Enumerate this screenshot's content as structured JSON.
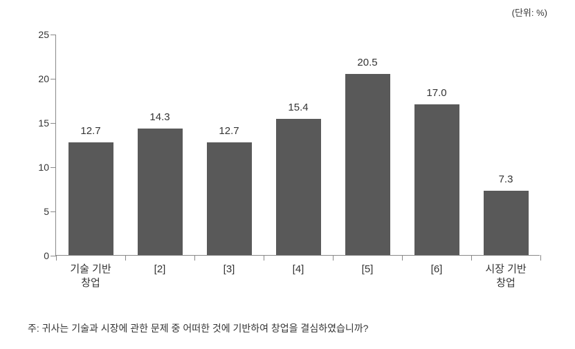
{
  "unit_label": "(단위: %)",
  "chart": {
    "type": "bar",
    "ylim": [
      0,
      25
    ],
    "ytick_step": 5,
    "yticks": [
      0,
      5,
      10,
      15,
      20,
      25
    ],
    "categories": [
      "기술 기반\n창업",
      "[2]",
      "[3]",
      "[4]",
      "[5]",
      "[6]",
      "시장 기반\n창업"
    ],
    "values": [
      12.7,
      14.3,
      12.7,
      15.4,
      20.5,
      17.0,
      7.3
    ],
    "value_labels": [
      "12.7",
      "14.3",
      "12.7",
      "15.4",
      "20.5",
      "17.0",
      "7.3"
    ],
    "bar_color": "#595959",
    "axis_color": "#888888",
    "background_color": "#ffffff",
    "bar_width_ratio": 0.65,
    "label_fontsize": 15,
    "tick_fontsize": 14
  },
  "footnote": "주: 귀사는 기술과 시장에 관한 문제 중 어떠한 것에 기반하여 창업을 결심하였습니까?"
}
